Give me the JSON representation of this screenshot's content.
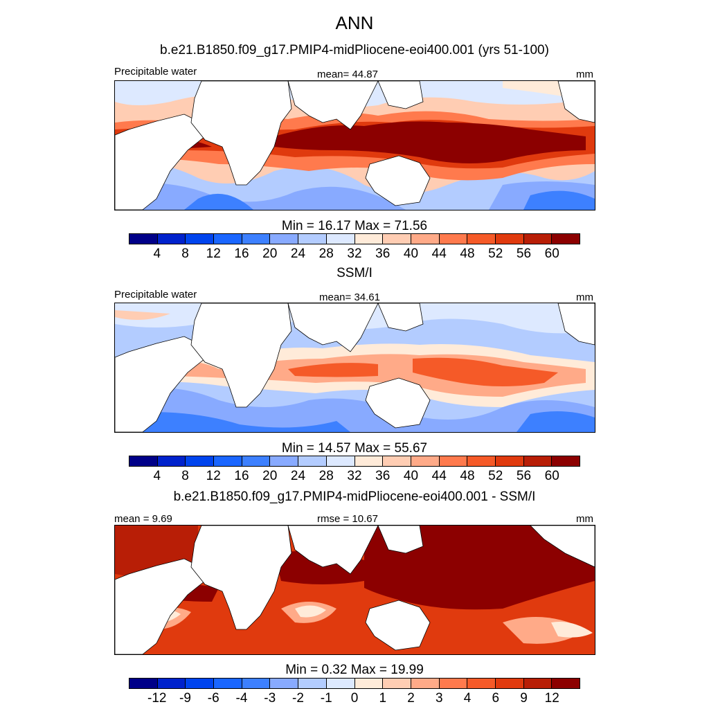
{
  "figure": {
    "title": "ANN",
    "colors_main": [
      "#000088",
      "#0022cc",
      "#0044ee",
      "#1a66ff",
      "#3d80ff",
      "#88aaff",
      "#b3ccff",
      "#dde9ff",
      "#ffebd9",
      "#ffcdb3",
      "#ffaa88",
      "#ff7a4d",
      "#f55a28",
      "#e03a0e",
      "#b81e06",
      "#8c0000"
    ],
    "colors_diff": [
      "#000088",
      "#0022cc",
      "#0044ee",
      "#1a66ff",
      "#3d80ff",
      "#88aaff",
      "#b3ccff",
      "#dde9ff",
      "#ffebd9",
      "#ffcdb3",
      "#ffaa88",
      "#ff7a4d",
      "#f55a28",
      "#e03a0e",
      "#b81e06",
      "#8c0000"
    ]
  },
  "panel1": {
    "title": "b.e21.B1850.f09_g17.PMIP4-midPliocene-eoi400.001 (yrs 51-100)",
    "left_label": "Precipitable water",
    "mean_label": "mean=  44.87",
    "units": "mm",
    "minmax": "Min =  16.17 Max =  71.56",
    "ticks": [
      "4",
      "8",
      "12",
      "16",
      "20",
      "24",
      "28",
      "32",
      "36",
      "40",
      "44",
      "48",
      "52",
      "56",
      "60"
    ]
  },
  "panel2": {
    "title": "SSM/I",
    "left_label": "Precipitable water",
    "mean_label": "mean=  34.61",
    "units": "mm",
    "minmax": "Min =  14.57 Max =  55.67",
    "ticks": [
      "4",
      "8",
      "12",
      "16",
      "20",
      "24",
      "28",
      "32",
      "36",
      "40",
      "44",
      "48",
      "52",
      "56",
      "60"
    ]
  },
  "panel3": {
    "title": "b.e21.B1850.f09_g17.PMIP4-midPliocene-eoi400.001 - SSM/I",
    "left_label": "mean =   9.69",
    "mean_label": "rmse =  10.67",
    "units": "mm",
    "minmax": "Min =   0.32 Max =  19.99",
    "ticks": [
      "-12",
      "-9",
      "-6",
      "-4",
      "-3",
      "-2",
      "-1",
      "0",
      "1",
      "2",
      "3",
      "4",
      "6",
      "9",
      "12"
    ]
  }
}
